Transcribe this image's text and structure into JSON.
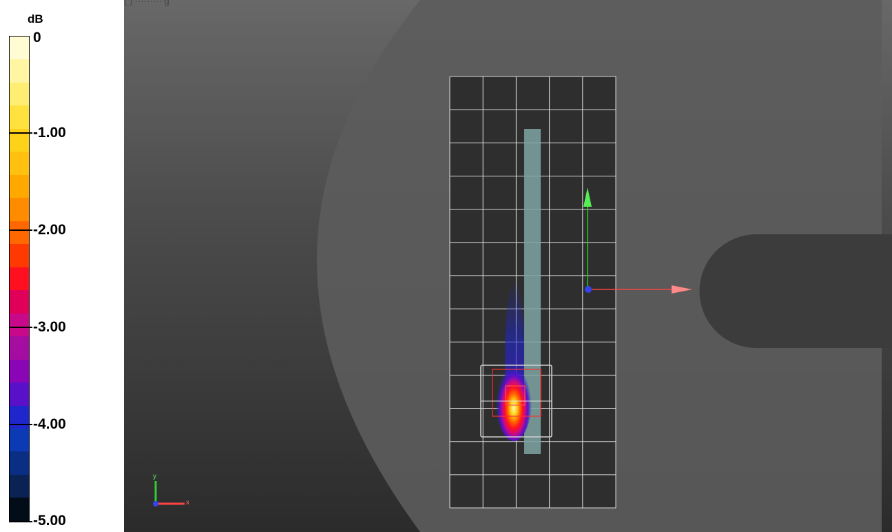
{
  "viewport": {
    "header_text": "(             )  ········· g"
  },
  "colorbar": {
    "unit": "dB",
    "ticks": [
      {
        "label": "0",
        "value": 0
      },
      {
        "label": "-1.00",
        "value": -1
      },
      {
        "label": "-2.00",
        "value": -2
      },
      {
        "label": "-3.00",
        "value": -3
      },
      {
        "label": "-4.00",
        "value": -4
      },
      {
        "label": "-5.00",
        "value": -5
      }
    ],
    "range": [
      -5,
      0
    ],
    "swatches": [
      "#fffbd2",
      "#fff5a3",
      "#ffee72",
      "#ffe23e",
      "#ffd21a",
      "#ffc010",
      "#ffa800",
      "#ff8b00",
      "#ff6800",
      "#ff3a00",
      "#ff1020",
      "#e0005a",
      "#c80a8a",
      "#a50ca0",
      "#8a05b5",
      "#5a10c8",
      "#1e26cc",
      "#0b3ab4",
      "#0a2e84",
      "#0a2254",
      "#030d1a"
    ]
  },
  "scene": {
    "axes_triad": {
      "x_label": "x",
      "y_label": "y"
    },
    "colors": {
      "grid": "#d8d8d8",
      "phantom": "#5c5c5c",
      "phantom_dark": "#444444",
      "grid_cell": "#2e2e2e",
      "antenna": "#7fa3a3",
      "arrow_x": "#ff4444",
      "arrow_y": "#22cc22",
      "origin": "#3344ee"
    }
  }
}
